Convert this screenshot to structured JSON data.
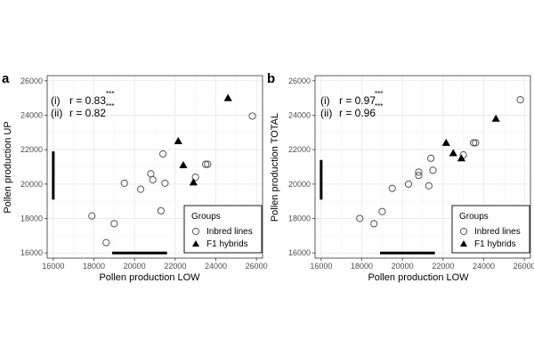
{
  "colors": {
    "background": "#ffffff",
    "panel_border": "#333333",
    "grid": "#e3e3e3",
    "marks": "#000000",
    "open_point": "#555555"
  },
  "legend": {
    "title": "Groups",
    "entries": [
      "Inbred lines",
      "F1 hybrids"
    ],
    "placement": "bottom-right"
  },
  "chart_data": [
    {
      "type": "scatter",
      "panel_label": "a",
      "xlabel": "Pollen production LOW",
      "ylabel": "Pollen production UP",
      "xlim": [
        15700,
        26300
      ],
      "ylim": [
        15700,
        26300
      ],
      "xticks": [
        16000,
        18000,
        20000,
        22000,
        24000,
        26000
      ],
      "yticks": [
        16000,
        18000,
        20000,
        22000,
        24000,
        26000
      ],
      "tick_labels": [
        "16000",
        "18000",
        "20000",
        "22000",
        "24000",
        "26000"
      ],
      "grid": true,
      "annotations": [
        {
          "label": "(i)",
          "text": "r = 0.83",
          "stars": "***"
        },
        {
          "label": "(ii)",
          "text": "r = 0.82",
          "stars": "***"
        }
      ],
      "range_bars": {
        "x": [
          18900,
          21600
        ],
        "y": [
          19100,
          21900
        ]
      },
      "series": [
        {
          "name": "Inbred lines",
          "marker": "open-circle",
          "points": [
            [
              17900,
              18150
            ],
            [
              18600,
              16600
            ],
            [
              19000,
              17700
            ],
            [
              19500,
              20050
            ],
            [
              20300,
              19700
            ],
            [
              20800,
              20600
            ],
            [
              20900,
              20250
            ],
            [
              21300,
              18450
            ],
            [
              21400,
              21750
            ],
            [
              21500,
              20050
            ],
            [
              23000,
              20400
            ],
            [
              23500,
              21150
            ],
            [
              23600,
              21150
            ],
            [
              25800,
              23950
            ]
          ]
        },
        {
          "name": "F1 hybrids",
          "marker": "filled-triangle",
          "points": [
            [
              22150,
              22500
            ],
            [
              22400,
              21100
            ],
            [
              22900,
              20100
            ],
            [
              24600,
              25000
            ]
          ]
        }
      ]
    },
    {
      "type": "scatter",
      "panel_label": "b",
      "xlabel": "Pollen production LOW",
      "ylabel": "Pollen production TOTAL",
      "xlim": [
        15700,
        26300
      ],
      "ylim": [
        15700,
        26300
      ],
      "xticks": [
        16000,
        18000,
        20000,
        22000,
        24000,
        26000
      ],
      "yticks": [
        16000,
        18000,
        20000,
        22000,
        24000,
        26000
      ],
      "tick_labels": [
        "16000",
        "18000",
        "20000",
        "22000",
        "24000",
        "26000"
      ],
      "grid": true,
      "annotations": [
        {
          "label": "(i)",
          "text": "r = 0.97",
          "stars": "***"
        },
        {
          "label": "(ii)",
          "text": "r = 0.96",
          "stars": "***"
        }
      ],
      "range_bars": {
        "x": [
          18900,
          21600
        ],
        "y": [
          19100,
          21400
        ]
      },
      "series": [
        {
          "name": "Inbred lines",
          "marker": "open-circle",
          "points": [
            [
              17900,
              18000
            ],
            [
              18600,
              17700
            ],
            [
              19000,
              18400
            ],
            [
              19500,
              19750
            ],
            [
              20300,
              20000
            ],
            [
              20800,
              20700
            ],
            [
              20800,
              20500
            ],
            [
              21300,
              19900
            ],
            [
              21400,
              21500
            ],
            [
              21500,
              20800
            ],
            [
              23000,
              21700
            ],
            [
              23500,
              22400
            ],
            [
              23600,
              22400
            ],
            [
              25800,
              24900
            ]
          ]
        },
        {
          "name": "F1 hybrids",
          "marker": "filled-triangle",
          "points": [
            [
              22150,
              22400
            ],
            [
              22500,
              21800
            ],
            [
              22900,
              21500
            ],
            [
              24600,
              23800
            ]
          ]
        }
      ]
    }
  ]
}
